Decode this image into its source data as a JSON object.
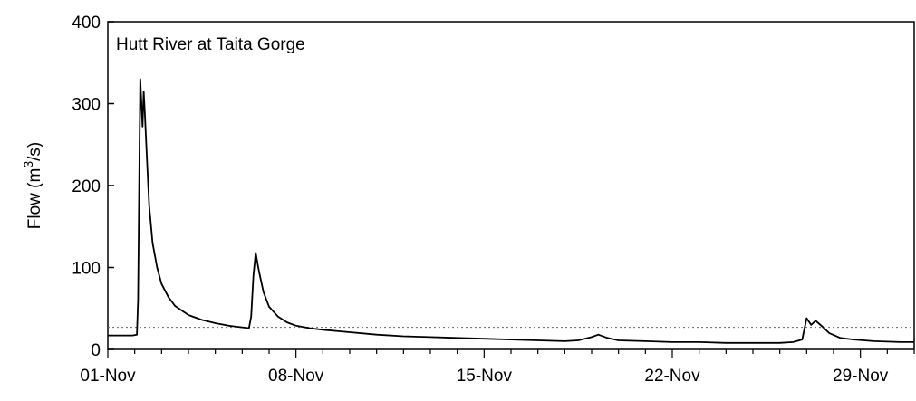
{
  "chart_data": {
    "type": "line",
    "title": "Hutt River at Taita Gorge",
    "ylabel": {
      "prefix": "Flow (m",
      "superscript": "3",
      "suffix": "/s)"
    },
    "xlabel": "",
    "ylim": [
      0,
      400
    ],
    "yticks": [
      0,
      100,
      200,
      300,
      400
    ],
    "xlim": [
      "2000-11-01",
      "2000-12-01"
    ],
    "xticks": [
      {
        "date": "2000-11-01",
        "label": "01-Nov"
      },
      {
        "date": "2000-11-08",
        "label": "08-Nov"
      },
      {
        "date": "2000-11-15",
        "label": "15-Nov"
      },
      {
        "date": "2000-11-22",
        "label": "22-Nov"
      },
      {
        "date": "2000-11-29",
        "label": "29-Nov"
      }
    ],
    "reference_line": {
      "y": 27,
      "style": "dotted"
    },
    "grid": false,
    "series": [
      {
        "color": "#000000",
        "points": [
          [
            "2000-11-01 00:00",
            17
          ],
          [
            "2000-11-01 12:00",
            17
          ],
          [
            "2000-11-01 22:00",
            17
          ],
          [
            "2000-11-02 02:00",
            18
          ],
          [
            "2000-11-02 03:00",
            60
          ],
          [
            "2000-11-02 04:00",
            200
          ],
          [
            "2000-11-02 05:00",
            330
          ],
          [
            "2000-11-02 06:00",
            300
          ],
          [
            "2000-11-02 07:00",
            272
          ],
          [
            "2000-11-02 08:00",
            315
          ],
          [
            "2000-11-02 09:00",
            290
          ],
          [
            "2000-11-02 11:00",
            230
          ],
          [
            "2000-11-02 13:00",
            175
          ],
          [
            "2000-11-02 16:00",
            130
          ],
          [
            "2000-11-02 20:00",
            100
          ],
          [
            "2000-11-03 00:00",
            80
          ],
          [
            "2000-11-03 06:00",
            64
          ],
          [
            "2000-11-03 12:00",
            53
          ],
          [
            "2000-11-04 00:00",
            42
          ],
          [
            "2000-11-04 12:00",
            36
          ],
          [
            "2000-11-05 00:00",
            32
          ],
          [
            "2000-11-05 12:00",
            29
          ],
          [
            "2000-11-06 00:00",
            27
          ],
          [
            "2000-11-06 06:00",
            26
          ],
          [
            "2000-11-06 08:00",
            40
          ],
          [
            "2000-11-06 10:00",
            90
          ],
          [
            "2000-11-06 12:00",
            118
          ],
          [
            "2000-11-06 15:00",
            95
          ],
          [
            "2000-11-06 19:00",
            70
          ],
          [
            "2000-11-07 00:00",
            52
          ],
          [
            "2000-11-07 08:00",
            40
          ],
          [
            "2000-11-07 16:00",
            33
          ],
          [
            "2000-11-08 00:00",
            29
          ],
          [
            "2000-11-08 12:00",
            26
          ],
          [
            "2000-11-09 00:00",
            24
          ],
          [
            "2000-11-10 00:00",
            21
          ],
          [
            "2000-11-11 00:00",
            18
          ],
          [
            "2000-11-12 00:00",
            16
          ],
          [
            "2000-11-13 00:00",
            15
          ],
          [
            "2000-11-14 00:00",
            14
          ],
          [
            "2000-11-15 00:00",
            13
          ],
          [
            "2000-11-16 00:00",
            12
          ],
          [
            "2000-11-17 00:00",
            11
          ],
          [
            "2000-11-18 00:00",
            10
          ],
          [
            "2000-11-18 12:00",
            11
          ],
          [
            "2000-11-19 00:00",
            15
          ],
          [
            "2000-11-19 06:00",
            18
          ],
          [
            "2000-11-19 14:00",
            14
          ],
          [
            "2000-11-20 00:00",
            11
          ],
          [
            "2000-11-21 00:00",
            10
          ],
          [
            "2000-11-22 00:00",
            9
          ],
          [
            "2000-11-23 00:00",
            9
          ],
          [
            "2000-11-24 00:00",
            8
          ],
          [
            "2000-11-25 00:00",
            8
          ],
          [
            "2000-11-26 00:00",
            8
          ],
          [
            "2000-11-26 12:00",
            9
          ],
          [
            "2000-11-26 20:00",
            12
          ],
          [
            "2000-11-27 00:00",
            38
          ],
          [
            "2000-11-27 04:00",
            30
          ],
          [
            "2000-11-27 08:00",
            35
          ],
          [
            "2000-11-27 14:00",
            28
          ],
          [
            "2000-11-27 20:00",
            20
          ],
          [
            "2000-11-28 06:00",
            14
          ],
          [
            "2000-11-28 18:00",
            12
          ],
          [
            "2000-11-29 12:00",
            10
          ],
          [
            "2000-11-30 12:00",
            9
          ],
          [
            "2000-12-01 00:00",
            9
          ]
        ]
      }
    ]
  }
}
